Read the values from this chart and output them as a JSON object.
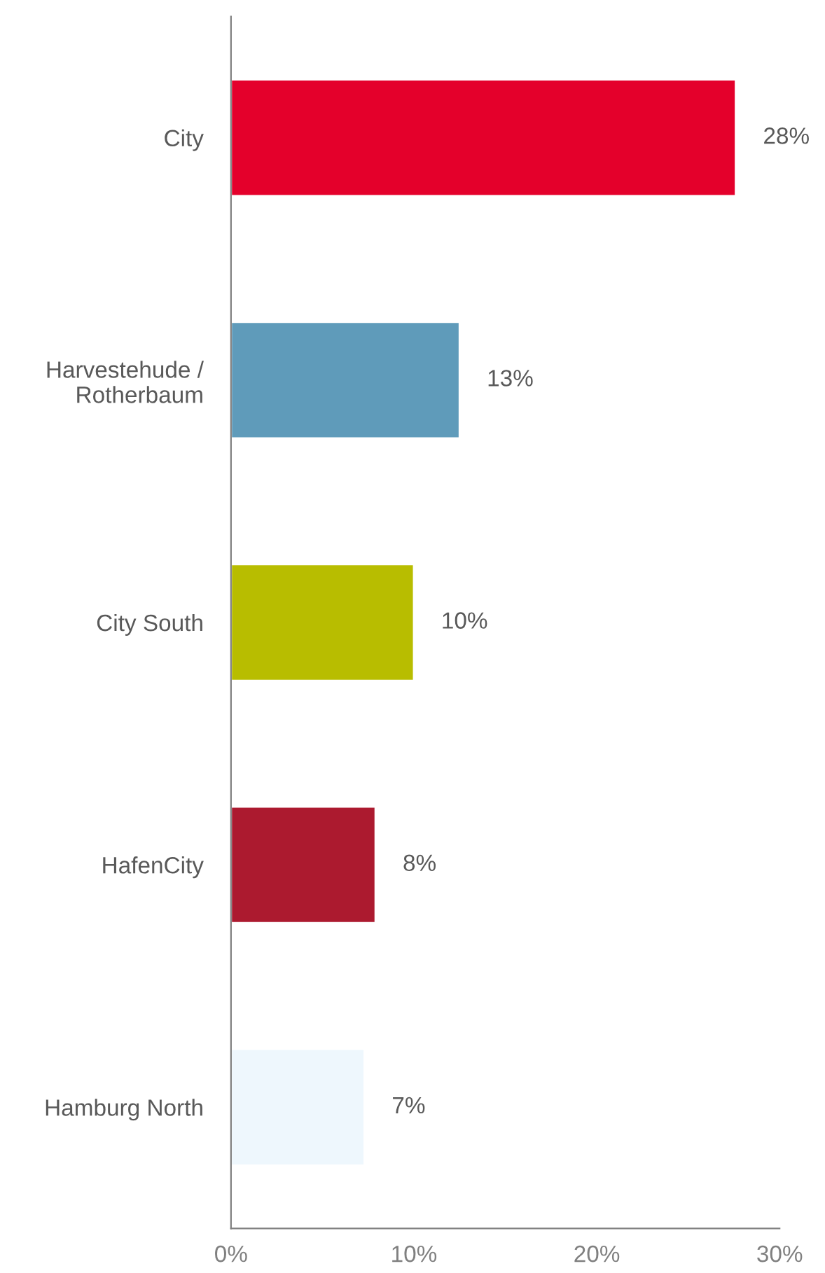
{
  "chart_data": {
    "type": "bar",
    "orientation": "horizontal",
    "categories": [
      "City",
      "Harvestehude /\nRotherbaum",
      "City South",
      "HafenCity",
      "Hamburg North"
    ],
    "values": [
      27.6,
      12.5,
      10,
      7.9,
      7.3
    ],
    "colors": [
      "#e4002b",
      "#5f9bba",
      "#b8bd00",
      "#ac1a2f",
      "#eef7fd"
    ],
    "value_labels": [
      "28%",
      "13%",
      "10%",
      "8%",
      "7%"
    ],
    "xlim": [
      0,
      30
    ],
    "xticks": [
      {
        "value": 0,
        "label": "0%"
      },
      {
        "value": 10,
        "label": "10%"
      },
      {
        "value": 20,
        "label": "20%"
      },
      {
        "value": 30,
        "label": "30%"
      }
    ],
    "grid": false,
    "legend": false
  }
}
